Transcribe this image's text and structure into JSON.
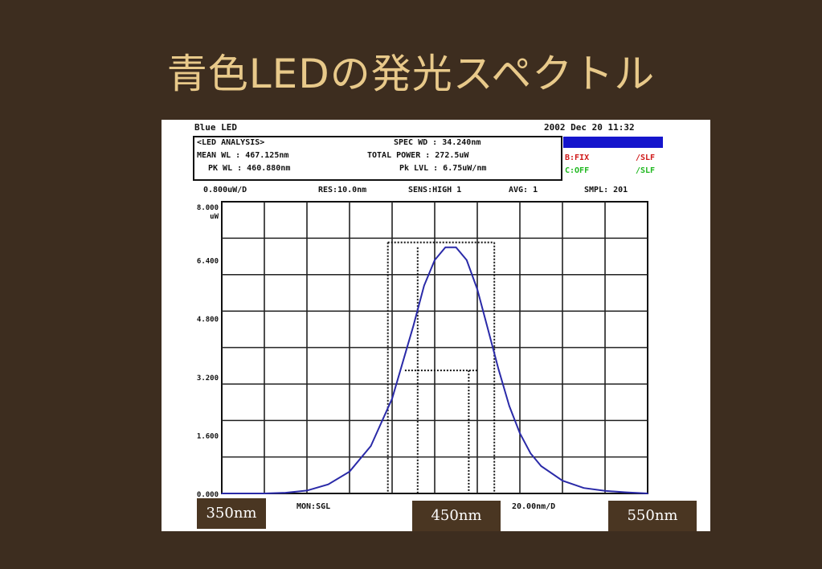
{
  "title": "青色LEDの発光スペクトル",
  "instrument": {
    "sample_name": "Blue LED",
    "datetime": "2002 Dec 20 11:32",
    "mode": "<LED ANALYSIS>",
    "mean_wl": "MEAN WL :  467.125nm",
    "pk_wl": "PK WL :  460.880nm",
    "spec_wd": "SPEC WD :   34.240nm",
    "total_power": "TOTAL POWER : 272.5uW",
    "pk_lvl": "Pk LVL : 6.75uW/nm",
    "b_fix": "B:FIX",
    "b_slf": "/SLF",
    "c_off": "C:OFF",
    "c_slf": "/SLF",
    "scale": "0.800uW/D",
    "res": "RES:10.0nm",
    "sens": "SENS:HIGH 1",
    "avg": "AVG:   1",
    "smpl": "SMPL: 201",
    "mon": "MON:SGL",
    "span_div": "20.00nm/D"
  },
  "chart_data": {
    "type": "line",
    "title": "",
    "xlabel": "",
    "ylabel": "",
    "xlim": [
      350,
      550
    ],
    "ylim": [
      0,
      8
    ],
    "y_tick_labels": [
      "8.000 uW",
      "6.400",
      "4.800",
      "3.200",
      "1.600",
      "0.000"
    ],
    "x_markers": [
      "350nm",
      "450nm",
      "550nm"
    ],
    "series": [
      {
        "color": "#2a2aa8",
        "x": [
          350,
          360,
          370,
          380,
          390,
          400,
          410,
          420,
          430,
          440,
          445,
          450,
          455,
          460,
          465,
          470,
          475,
          480,
          485,
          490,
          495,
          500,
          510,
          520,
          530,
          540,
          550
        ],
        "y": [
          0.0,
          0.0,
          0.0,
          0.02,
          0.08,
          0.25,
          0.6,
          1.3,
          2.6,
          4.6,
          5.7,
          6.4,
          6.75,
          6.75,
          6.4,
          5.6,
          4.5,
          3.4,
          2.4,
          1.65,
          1.1,
          0.75,
          0.35,
          0.15,
          0.07,
          0.03,
          0.0
        ]
      }
    ],
    "grid": true
  }
}
